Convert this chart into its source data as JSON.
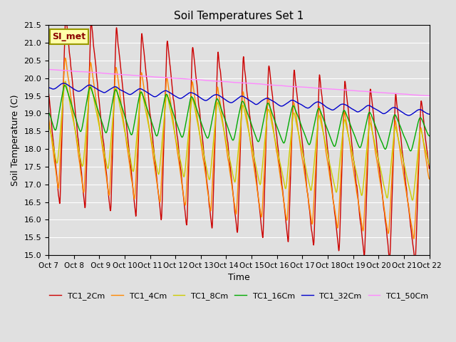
{
  "title": "Soil Temperatures Set 1",
  "xlabel": "Time",
  "ylabel": "Soil Temperature (C)",
  "ylim": [
    15.0,
    21.5
  ],
  "x_tick_labels": [
    "Oct 7",
    "Oct 8",
    " Oct 9",
    "Oct 10",
    "Oct 11",
    "Oct 12",
    "Oct 13",
    "Oct 14",
    "Oct 15",
    "Oct 16",
    "Oct 17",
    "Oct 18",
    "Oct 19",
    "Oct 20",
    "Oct 21",
    "Oct 22"
  ],
  "annotation_text": "SI_met",
  "colors": {
    "TC1_2Cm": "#cc0000",
    "TC1_4Cm": "#ff8800",
    "TC1_8Cm": "#cccc00",
    "TC1_16Cm": "#00aa00",
    "TC1_32Cm": "#0000cc",
    "TC1_50Cm": "#ff88ff"
  },
  "background_color": "#e0e0e0",
  "plot_bg_color": "#e0e0e0",
  "grid_color": "#ffffff",
  "linewidth": 1.0
}
